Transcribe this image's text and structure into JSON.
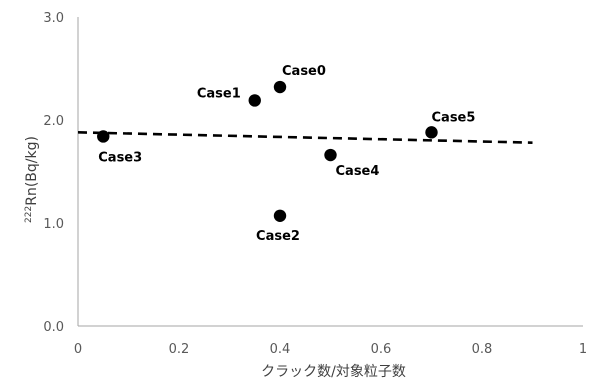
{
  "chart_data": {
    "type": "scatter",
    "title": "",
    "xlabel": "クラック数/対象粒子数",
    "ylabel": "Rn(Bq/kg)",
    "ylabel_superscript": "222",
    "xlim": [
      0,
      1
    ],
    "ylim": [
      0,
      3
    ],
    "x_ticks": [
      "0",
      "0.2",
      "0.4",
      "0.6",
      "0.8",
      "1"
    ],
    "y_ticks": [
      "0.0",
      "1.0",
      "2.0",
      "3.0"
    ],
    "grid": false,
    "legend": "none",
    "points": [
      {
        "label": "Case0",
        "x": 0.4,
        "y": 2.32
      },
      {
        "label": "Case1",
        "x": 0.35,
        "y": 2.19
      },
      {
        "label": "Case2",
        "x": 0.4,
        "y": 1.07
      },
      {
        "label": "Case3",
        "x": 0.05,
        "y": 1.84
      },
      {
        "label": "Case4",
        "x": 0.5,
        "y": 1.66
      },
      {
        "label": "Case5",
        "x": 0.7,
        "y": 1.88
      }
    ],
    "trendline": {
      "style": "dashed",
      "x": [
        0,
        0.9
      ],
      "y": [
        1.88,
        1.78
      ]
    },
    "colors": {
      "marker": "#000000",
      "axis": "#a6a6a6",
      "trendline": "#000000"
    }
  }
}
